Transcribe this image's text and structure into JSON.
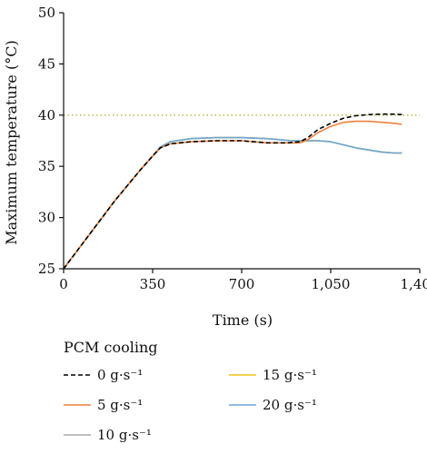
{
  "chart_data": {
    "type": "line",
    "title": "",
    "xlabel": "Time (s)",
    "ylabel": "Maximum temperature (°C)",
    "xlim": [
      0,
      1400
    ],
    "ylim": [
      25,
      50
    ],
    "x_ticks": [
      0,
      350,
      700,
      1050,
      1400
    ],
    "x_tick_labels": [
      "0",
      "350",
      "700",
      "1,050",
      "1,400"
    ],
    "y_ticks": [
      25,
      30,
      35,
      40,
      45,
      50
    ],
    "y_tick_labels": [
      "25",
      "30",
      "35",
      "40",
      "45",
      "50"
    ],
    "reference_line": {
      "y": 40,
      "style": "dotted",
      "color": "#b5b53a"
    },
    "legend_title": "PCM cooling",
    "legend_position": "bottom",
    "series": [
      {
        "name": "0 g·s⁻¹",
        "color": "#000000",
        "dash": "dashed",
        "x": [
          0,
          100,
          200,
          300,
          350,
          380,
          420,
          500,
          600,
          700,
          800,
          880,
          930,
          960,
          1000,
          1050,
          1100,
          1150,
          1200,
          1250,
          1300,
          1330
        ],
        "y": [
          25.0,
          28.3,
          31.6,
          34.6,
          36.0,
          36.8,
          37.2,
          37.4,
          37.5,
          37.5,
          37.3,
          37.3,
          37.4,
          37.8,
          38.6,
          39.2,
          39.7,
          39.95,
          40.05,
          40.1,
          40.1,
          40.05
        ]
      },
      {
        "name": "5 g·s⁻¹",
        "color": "#f0803c",
        "dash": "solid",
        "x": [
          0,
          100,
          200,
          300,
          350,
          380,
          420,
          500,
          600,
          700,
          800,
          880,
          930,
          960,
          1000,
          1050,
          1100,
          1150,
          1200,
          1250,
          1300,
          1330
        ],
        "y": [
          25.0,
          28.3,
          31.6,
          34.6,
          36.0,
          36.8,
          37.2,
          37.4,
          37.5,
          37.5,
          37.3,
          37.3,
          37.3,
          37.6,
          38.3,
          38.9,
          39.3,
          39.4,
          39.4,
          39.3,
          39.2,
          39.1
        ]
      },
      {
        "name": "10 g·s⁻¹",
        "color": "#a8a8a8",
        "dash": "solid",
        "x": [
          0,
          100,
          200,
          300,
          350,
          380,
          420,
          500,
          600,
          700,
          800,
          900,
          1000,
          1050,
          1100,
          1150,
          1200,
          1250,
          1300,
          1330
        ],
        "y": [
          25.0,
          28.3,
          31.6,
          34.6,
          36.0,
          36.9,
          37.4,
          37.7,
          37.8,
          37.8,
          37.7,
          37.5,
          37.5,
          37.4,
          37.1,
          36.8,
          36.6,
          36.4,
          36.3,
          36.3
        ]
      },
      {
        "name": "15 g·s⁻¹",
        "color": "#f2c318",
        "dash": "solid",
        "x": [
          0,
          100,
          200,
          300,
          350,
          380,
          420,
          500,
          600,
          700,
          800,
          900,
          1000,
          1050,
          1100,
          1150,
          1200,
          1250,
          1300,
          1330
        ],
        "y": [
          25.0,
          28.3,
          31.6,
          34.6,
          36.0,
          36.9,
          37.4,
          37.7,
          37.8,
          37.8,
          37.7,
          37.5,
          37.5,
          37.4,
          37.1,
          36.8,
          36.6,
          36.4,
          36.3,
          36.3
        ]
      },
      {
        "name": "20 g·s⁻¹",
        "color": "#6aa7d8",
        "dash": "solid",
        "x": [
          0,
          100,
          200,
          300,
          350,
          380,
          420,
          500,
          600,
          700,
          800,
          900,
          1000,
          1050,
          1100,
          1150,
          1200,
          1250,
          1300,
          1330
        ],
        "y": [
          25.0,
          28.3,
          31.6,
          34.6,
          36.0,
          36.9,
          37.4,
          37.7,
          37.8,
          37.8,
          37.7,
          37.5,
          37.5,
          37.4,
          37.1,
          36.8,
          36.6,
          36.4,
          36.3,
          36.3
        ]
      }
    ],
    "legend_order": [
      0,
      3,
      1,
      4,
      2
    ]
  }
}
